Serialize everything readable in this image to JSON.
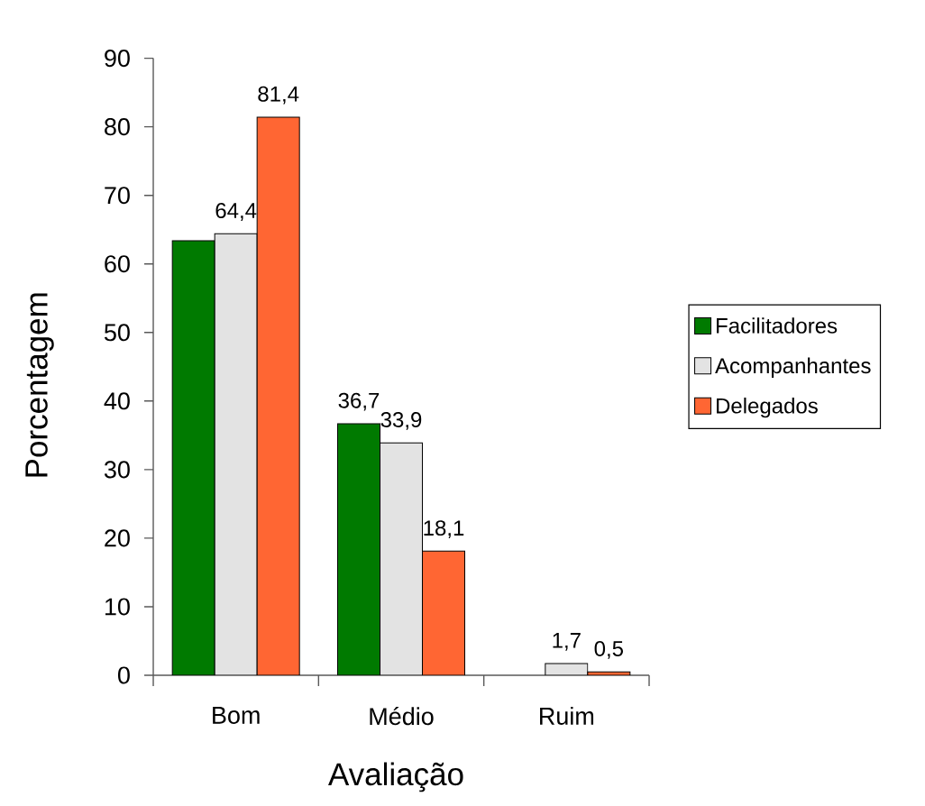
{
  "chart_data": {
    "type": "bar",
    "xlabel": "Avaliação",
    "ylabel": "Porcentagem",
    "categories": [
      "Bom",
      "Médio",
      "Ruim"
    ],
    "series": [
      {
        "name": "Facilitadores",
        "color": "#007a00",
        "values": [
          63.4,
          36.7,
          null
        ],
        "value_labels": [
          null,
          "36,7",
          null
        ]
      },
      {
        "name": "Acompanhantes",
        "color": "#e3e3e3",
        "values": [
          64.4,
          33.9,
          1.7
        ],
        "value_labels": [
          "64,4",
          "33,9",
          "1,7"
        ]
      },
      {
        "name": "Delegados",
        "color": "#ff6633",
        "values": [
          81.4,
          18.1,
          0.5
        ],
        "value_labels": [
          "81,4",
          "18,1",
          "0,5"
        ]
      }
    ],
    "ylim": [
      0,
      90
    ],
    "yticks": [
      0,
      10,
      20,
      30,
      40,
      50,
      60,
      70,
      80,
      90
    ],
    "legend": "right"
  }
}
